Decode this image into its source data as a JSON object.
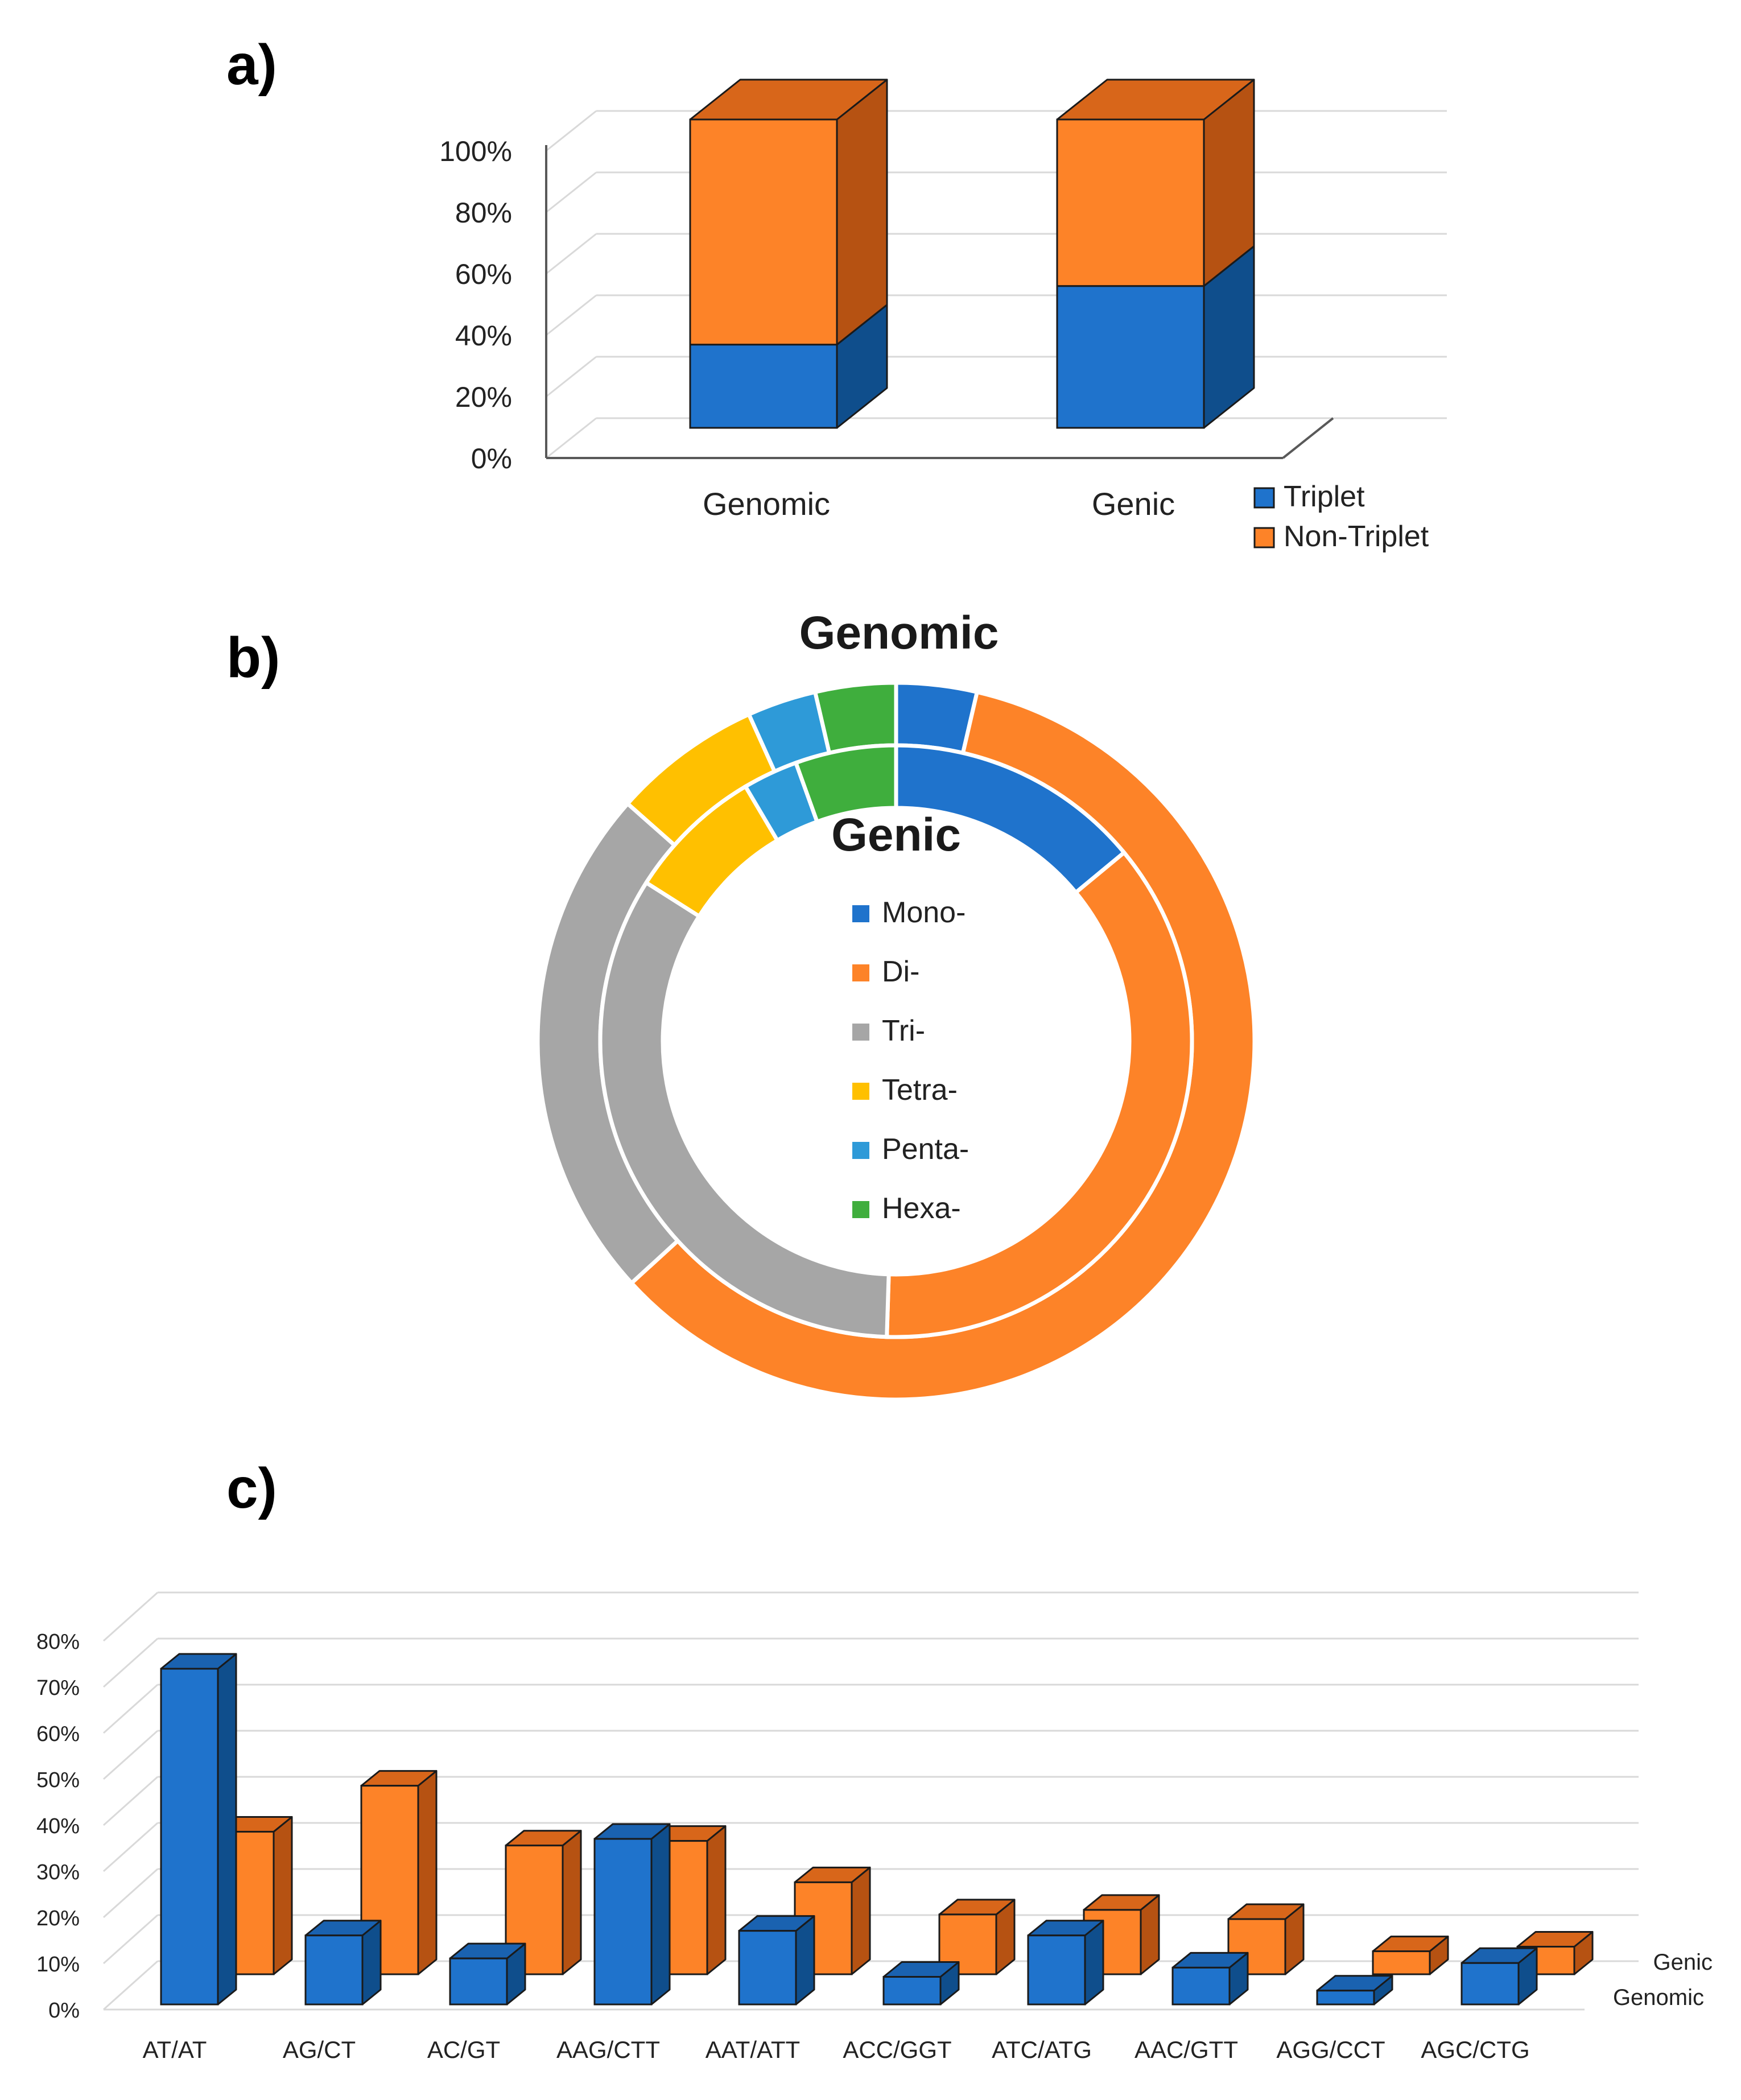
{
  "panels": {
    "a": "a)",
    "b": "b)",
    "c": "c)"
  },
  "colors": {
    "blue": "#1f73cc",
    "blue_side": "#0f4e8c",
    "blue_top": "#1a62b0",
    "orange": "#fd8328",
    "orange_side": "#b65212",
    "orange_top": "#d8661a",
    "gray": "#a6a6a6",
    "yellow": "#ffc000",
    "lightblue": "#2e9ad8",
    "green": "#3fae3d",
    "grid": "#d9d9d9",
    "axis": "#595959"
  },
  "chart_data": [
    {
      "type": "bar",
      "subtype": "stacked-3d-percent",
      "categories": [
        "Genomic",
        "Genic"
      ],
      "series": [
        {
          "name": "Triplet",
          "values": [
            27,
            46
          ],
          "color": "blue"
        },
        {
          "name": "Non-Triplet",
          "values": [
            73,
            54
          ],
          "color": "orange"
        }
      ],
      "yticks": [
        "0%",
        "20%",
        "40%",
        "60%",
        "80%",
        "100%"
      ],
      "ylim": [
        0,
        100
      ],
      "legend_position": "bottom-right"
    },
    {
      "type": "pie",
      "subtype": "double-donut",
      "rings": [
        {
          "name": "Genomic",
          "values": [
            3.5,
            57.5,
            22.5,
            6.5,
            3,
            3.5
          ]
        },
        {
          "name": "Genic",
          "values": [
            14,
            36.5,
            33.5,
            7.5,
            3,
            5.5
          ]
        }
      ],
      "labels": [
        "Mono-",
        "Di-",
        "Tri-",
        "Tetra-",
        "Penta-",
        "Hexa-"
      ],
      "slice_colors": [
        "blue",
        "orange",
        "gray",
        "yellow",
        "lightblue",
        "green"
      ],
      "legend_position": "center"
    },
    {
      "type": "bar",
      "subtype": "3d-grouped-percent",
      "categories": [
        "AT/AT",
        "AG/CT",
        "AC/GT",
        "AAG/CTT",
        "AAT/ATT",
        "ACC/GGT",
        "ATC/ATG",
        "AAC/GTT",
        "AGG/CCT",
        "AGC/CTG"
      ],
      "series": [
        {
          "name": "Genomic",
          "values": [
            73,
            15,
            10,
            36,
            16,
            6,
            15,
            8,
            3,
            9
          ],
          "color": "blue"
        },
        {
          "name": "Genic",
          "values": [
            31,
            41,
            28,
            29,
            20,
            13,
            14,
            12,
            5,
            6
          ],
          "color": "orange"
        }
      ],
      "yticks": [
        "0%",
        "10%",
        "20%",
        "30%",
        "40%",
        "50%",
        "60%",
        "70%",
        "80%"
      ],
      "ylim": [
        0,
        80
      ]
    }
  ]
}
